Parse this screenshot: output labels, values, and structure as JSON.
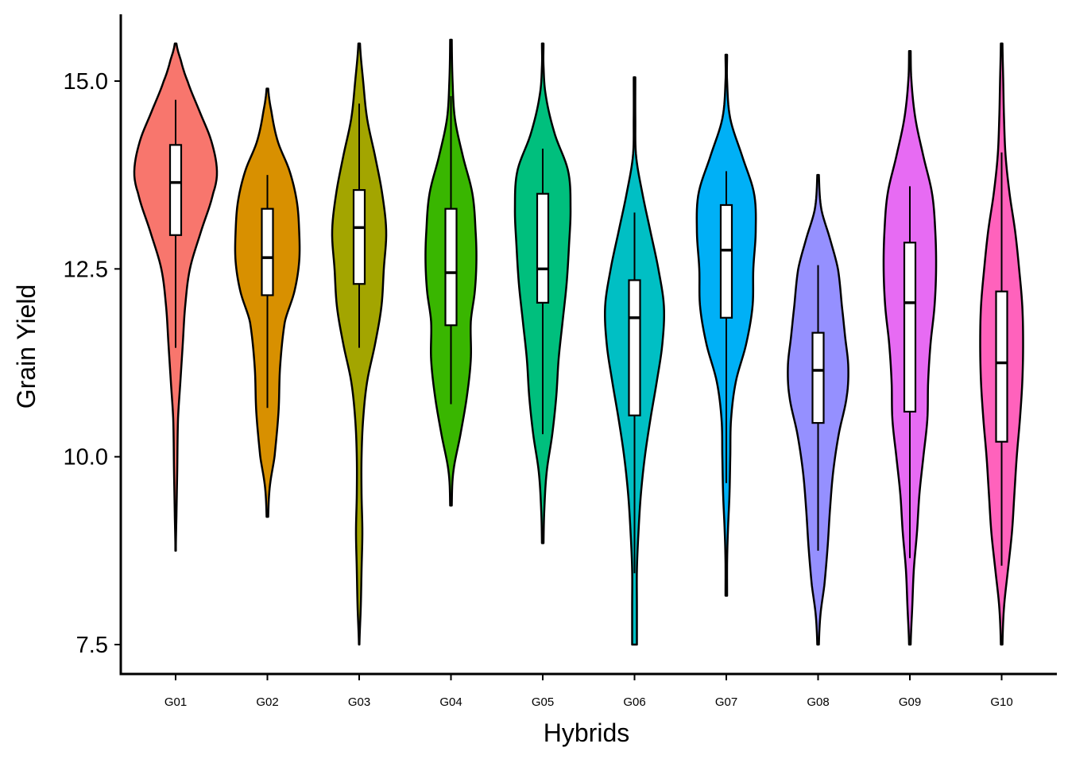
{
  "chart_data": {
    "type": "violin",
    "title": "",
    "xlabel": "Hybrids",
    "ylabel": "Grain Yield",
    "ylim": [
      7.25,
      15.95
    ],
    "yticks": [
      7.5,
      10.0,
      12.5,
      15.0
    ],
    "ytick_labels": [
      "7.5",
      "10.0",
      "12.5",
      "15.0"
    ],
    "grid": false,
    "legend": "none",
    "categories": [
      "G01",
      "G02",
      "G03",
      "G04",
      "G05",
      "G06",
      "G07",
      "G08",
      "G09",
      "G10"
    ],
    "colors": [
      "#F8766D",
      "#D89000",
      "#A3A500",
      "#39B600",
      "#00BF7D",
      "#00BFC4",
      "#00B0F6",
      "#9590FF",
      "#E76BF3",
      "#FF62BC"
    ],
    "series": [
      {
        "category": "G01",
        "violin_range": [
          8.75,
          15.5
        ],
        "density": [
          [
            8.75,
            0.2
          ],
          [
            9.2,
            1
          ],
          [
            9.8,
            2
          ],
          [
            10.5,
            3
          ],
          [
            11.0,
            6
          ],
          [
            11.5,
            9
          ],
          [
            12.0,
            12
          ],
          [
            12.5,
            18
          ],
          [
            13.0,
            32
          ],
          [
            13.5,
            47
          ],
          [
            13.8,
            52
          ],
          [
            14.2,
            45
          ],
          [
            14.6,
            30
          ],
          [
            15.0,
            15
          ],
          [
            15.3,
            6
          ],
          [
            15.5,
            1
          ]
        ],
        "box": {
          "lower_whisker": 11.45,
          "q1": 12.95,
          "median": 13.65,
          "q3": 14.15,
          "upper_whisker": 14.75
        }
      },
      {
        "category": "G02",
        "violin_range": [
          9.2,
          14.9
        ],
        "density": [
          [
            9.2,
            1
          ],
          [
            9.6,
            3
          ],
          [
            10.0,
            9
          ],
          [
            10.6,
            14
          ],
          [
            11.2,
            16
          ],
          [
            11.8,
            22
          ],
          [
            12.2,
            34
          ],
          [
            12.6,
            40
          ],
          [
            13.0,
            40
          ],
          [
            13.4,
            37
          ],
          [
            13.8,
            28
          ],
          [
            14.2,
            13
          ],
          [
            14.6,
            5
          ],
          [
            14.9,
            1
          ]
        ],
        "box": {
          "lower_whisker": 10.65,
          "q1": 12.15,
          "median": 12.65,
          "q3": 13.3,
          "upper_whisker": 13.75
        }
      },
      {
        "category": "G03",
        "violin_range": [
          7.5,
          15.5
        ],
        "density": [
          [
            7.5,
            0.3
          ],
          [
            8.0,
            2
          ],
          [
            8.5,
            3
          ],
          [
            9.0,
            4
          ],
          [
            9.5,
            3
          ],
          [
            10.0,
            3
          ],
          [
            10.5,
            5
          ],
          [
            11.0,
            10
          ],
          [
            11.5,
            20
          ],
          [
            12.0,
            28
          ],
          [
            12.5,
            31
          ],
          [
            13.0,
            34
          ],
          [
            13.5,
            29
          ],
          [
            14.0,
            20
          ],
          [
            14.5,
            10
          ],
          [
            15.0,
            5
          ],
          [
            15.5,
            1
          ]
        ],
        "box": {
          "lower_whisker": 11.45,
          "q1": 12.3,
          "median": 13.05,
          "q3": 13.55,
          "upper_whisker": 14.7
        }
      },
      {
        "category": "G04",
        "violin_range": [
          9.35,
          15.55
        ],
        "density": [
          [
            9.35,
            1
          ],
          [
            9.8,
            3
          ],
          [
            10.3,
            12
          ],
          [
            10.8,
            20
          ],
          [
            11.3,
            25
          ],
          [
            11.8,
            25
          ],
          [
            12.2,
            30
          ],
          [
            12.6,
            32
          ],
          [
            13.0,
            31
          ],
          [
            13.5,
            27
          ],
          [
            14.0,
            15
          ],
          [
            14.5,
            5
          ],
          [
            15.0,
            2
          ],
          [
            15.55,
            1
          ]
        ],
        "box": {
          "lower_whisker": 10.7,
          "q1": 11.75,
          "median": 12.45,
          "q3": 13.3,
          "upper_whisker": 14.8
        }
      },
      {
        "category": "G05",
        "violin_range": [
          8.85,
          15.5
        ],
        "density": [
          [
            8.85,
            1
          ],
          [
            9.3,
            2
          ],
          [
            9.8,
            5
          ],
          [
            10.3,
            12
          ],
          [
            10.8,
            17
          ],
          [
            11.3,
            20
          ],
          [
            11.8,
            25
          ],
          [
            12.3,
            30
          ],
          [
            12.8,
            33
          ],
          [
            13.3,
            35
          ],
          [
            13.8,
            32
          ],
          [
            14.3,
            15
          ],
          [
            14.8,
            4
          ],
          [
            15.2,
            1
          ],
          [
            15.5,
            1
          ]
        ],
        "box": {
          "lower_whisker": 10.3,
          "q1": 12.05,
          "median": 12.5,
          "q3": 13.5,
          "upper_whisker": 14.1
        }
      },
      {
        "category": "G06",
        "violin_range": [
          7.5,
          15.05
        ],
        "density": [
          [
            7.5,
            3
          ],
          [
            8.0,
            3
          ],
          [
            8.5,
            3
          ],
          [
            9.0,
            5
          ],
          [
            9.5,
            8
          ],
          [
            10.0,
            13
          ],
          [
            10.5,
            20
          ],
          [
            11.0,
            28
          ],
          [
            11.5,
            35
          ],
          [
            12.0,
            37
          ],
          [
            12.5,
            30
          ],
          [
            13.0,
            20
          ],
          [
            13.5,
            10
          ],
          [
            14.0,
            2
          ],
          [
            14.5,
            1
          ],
          [
            15.05,
            1
          ]
        ],
        "box": {
          "lower_whisker": 8.45,
          "q1": 10.55,
          "median": 11.85,
          "q3": 12.35,
          "upper_whisker": 13.25
        }
      },
      {
        "category": "G07",
        "violin_range": [
          8.15,
          15.35
        ],
        "density": [
          [
            8.15,
            1
          ],
          [
            8.6,
            1
          ],
          [
            9.0,
            2
          ],
          [
            9.5,
            4
          ],
          [
            10.0,
            5
          ],
          [
            10.5,
            6
          ],
          [
            11.0,
            12
          ],
          [
            11.5,
            25
          ],
          [
            12.0,
            33
          ],
          [
            12.5,
            34
          ],
          [
            13.0,
            37
          ],
          [
            13.5,
            35
          ],
          [
            14.0,
            20
          ],
          [
            14.5,
            5
          ],
          [
            15.0,
            1
          ],
          [
            15.35,
            1
          ]
        ],
        "box": {
          "lower_whisker": 9.65,
          "q1": 11.85,
          "median": 12.75,
          "q3": 13.35,
          "upper_whisker": 13.8
        }
      },
      {
        "category": "G08",
        "violin_range": [
          7.5,
          13.75
        ],
        "density": [
          [
            7.5,
            1
          ],
          [
            7.9,
            3
          ],
          [
            8.3,
            8
          ],
          [
            8.8,
            12
          ],
          [
            9.3,
            15
          ],
          [
            9.8,
            19
          ],
          [
            10.3,
            26
          ],
          [
            10.8,
            36
          ],
          [
            11.2,
            38
          ],
          [
            11.6,
            34
          ],
          [
            12.0,
            30
          ],
          [
            12.5,
            25
          ],
          [
            12.9,
            15
          ],
          [
            13.3,
            4
          ],
          [
            13.75,
            1
          ]
        ],
        "box": {
          "lower_whisker": 8.75,
          "q1": 10.45,
          "median": 11.15,
          "q3": 11.65,
          "upper_whisker": 12.55
        }
      },
      {
        "category": "G09",
        "violin_range": [
          7.5,
          15.4
        ],
        "density": [
          [
            7.5,
            1
          ],
          [
            8.0,
            3
          ],
          [
            8.5,
            5
          ],
          [
            9.0,
            9
          ],
          [
            9.5,
            12
          ],
          [
            10.0,
            17
          ],
          [
            10.5,
            22
          ],
          [
            11.0,
            23
          ],
          [
            11.5,
            26
          ],
          [
            12.0,
            31
          ],
          [
            12.5,
            33
          ],
          [
            13.0,
            32
          ],
          [
            13.5,
            28
          ],
          [
            14.0,
            17
          ],
          [
            14.5,
            7
          ],
          [
            15.0,
            2
          ],
          [
            15.4,
            1
          ]
        ],
        "box": {
          "lower_whisker": 8.65,
          "q1": 10.6,
          "median": 12.05,
          "q3": 12.85,
          "upper_whisker": 13.6
        }
      },
      {
        "category": "G10",
        "violin_range": [
          7.5,
          15.5
        ],
        "density": [
          [
            7.5,
            1
          ],
          [
            8.0,
            3
          ],
          [
            8.5,
            8
          ],
          [
            9.0,
            13
          ],
          [
            9.5,
            16
          ],
          [
            10.0,
            19
          ],
          [
            10.5,
            23
          ],
          [
            11.0,
            26
          ],
          [
            11.5,
            27
          ],
          [
            12.0,
            26
          ],
          [
            12.5,
            22
          ],
          [
            13.0,
            17
          ],
          [
            13.5,
            10
          ],
          [
            14.0,
            5
          ],
          [
            14.5,
            3
          ],
          [
            15.0,
            2
          ],
          [
            15.5,
            1
          ]
        ],
        "box": {
          "lower_whisker": 8.55,
          "q1": 10.2,
          "median": 11.25,
          "q3": 12.2,
          "upper_whisker": 14.05
        }
      }
    ]
  }
}
